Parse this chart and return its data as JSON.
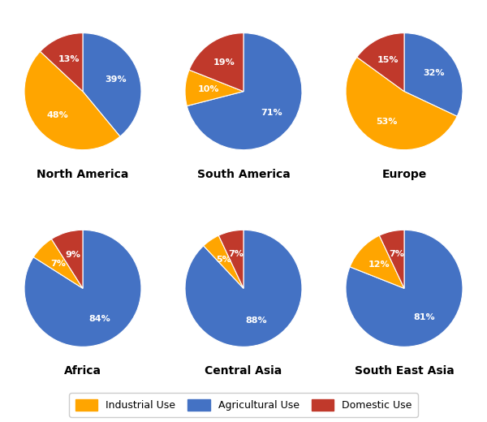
{
  "regions": [
    "North America",
    "South America",
    "Europe",
    "Africa",
    "Central Asia",
    "South East Asia"
  ],
  "data": [
    {
      "agricultural": 39,
      "industrial": 48,
      "domestic": 13
    },
    {
      "agricultural": 71,
      "industrial": 10,
      "domestic": 19
    },
    {
      "agricultural": 32,
      "industrial": 53,
      "domestic": 15
    },
    {
      "agricultural": 84,
      "industrial": 7,
      "domestic": 9
    },
    {
      "agricultural": 88,
      "industrial": 5,
      "domestic": 7
    },
    {
      "agricultural": 81,
      "industrial": 12,
      "domestic": 7
    }
  ],
  "startangles": [
    90,
    90,
    90,
    90,
    90,
    90
  ],
  "colors": {
    "industrial": "#FFA500",
    "agricultural": "#4472C4",
    "domestic": "#C0392B"
  },
  "legend_labels": [
    "Industrial Use",
    "Agricultural Use",
    "Domestic Use"
  ],
  "label_fontsize": 8,
  "title_fontsize": 10
}
